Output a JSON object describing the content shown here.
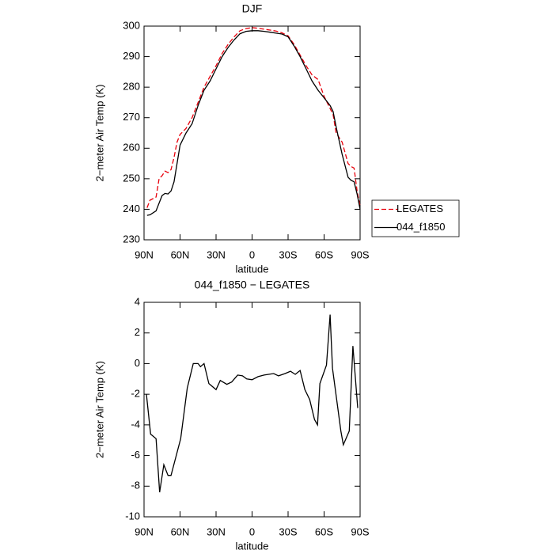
{
  "chart_data": [
    {
      "type": "line",
      "title": "DJF",
      "x_label": "latitude",
      "y_label": "2−meter Air Temp (K)",
      "x": [
        87.5,
        85,
        80,
        77.5,
        75,
        72.5,
        70,
        67.5,
        65,
        62.5,
        60,
        55,
        50,
        45,
        40,
        35,
        30,
        25,
        20,
        15,
        10,
        5,
        0,
        -5,
        -10,
        -15,
        -20,
        -25,
        -30,
        -35,
        -40,
        -45,
        -50,
        -55,
        -60,
        -65,
        -67.5,
        -70,
        -75,
        -80,
        -82.5,
        -85,
        -87.5,
        -90
      ],
      "series": [
        {
          "name": "LEGATES",
          "color": "#e8000b",
          "dash": "dashed",
          "values": [
            240.5,
            243,
            244,
            250,
            251,
            252.5,
            252,
            253,
            257,
            262,
            264.5,
            266.5,
            270,
            275,
            280,
            283.5,
            287,
            291,
            294,
            296.5,
            298.5,
            299.2,
            299.5,
            299.3,
            299,
            298.7,
            298.4,
            297.8,
            296.8,
            294,
            290.5,
            287,
            284,
            282.5,
            277,
            273,
            271,
            265,
            262,
            255,
            254,
            253.5,
            246,
            241
          ]
        },
        {
          "name": "044_f1850",
          "color": "#000000",
          "dash": "solid",
          "values": [
            238,
            238.2,
            239.5,
            242,
            244.5,
            245.2,
            245,
            246,
            249,
            255,
            261,
            265,
            268,
            274,
            279,
            282,
            286,
            290,
            293,
            295.5,
            297.5,
            298.3,
            298.5,
            298.5,
            298.3,
            298,
            297.7,
            297.4,
            296.5,
            293.5,
            290,
            286,
            282,
            279,
            276.5,
            274,
            272,
            267,
            258,
            250.5,
            249.5,
            249,
            245,
            240
          ]
        }
      ],
      "xlim": [
        90,
        -90
      ],
      "xticks": [
        {
          "value": 90,
          "label": "90N"
        },
        {
          "value": 60,
          "label": "60N"
        },
        {
          "value": 30,
          "label": "30N"
        },
        0,
        {
          "value": -30,
          "label": "30S"
        },
        {
          "value": -60,
          "label": "60S"
        },
        {
          "value": -90,
          "label": "90S"
        }
      ],
      "ylim": [
        230,
        300
      ],
      "yticks": [
        230,
        240,
        250,
        260,
        270,
        280,
        290,
        300
      ],
      "legend": "outside-right"
    },
    {
      "type": "line",
      "title": "044_f1850 − LEGATES",
      "x_label": "latitude",
      "y_label": "2−meter Air Temp (K)",
      "x": [
        88,
        84.5,
        80,
        77,
        73.5,
        70,
        67.5,
        63.5,
        59.5,
        54,
        49,
        45,
        43,
        40,
        36,
        30,
        26.5,
        21,
        17,
        12,
        8,
        4.5,
        0,
        -5,
        -10,
        -18,
        -22,
        -27.5,
        -32,
        -36,
        -40,
        -44,
        -48,
        -52,
        -54.5,
        -56.5,
        -62,
        -65,
        -67,
        -74,
        -76,
        -81,
        -84,
        -88
      ],
      "values": [
        -2,
        -4.6,
        -4.9,
        -8.4,
        -6.6,
        -7.3,
        -7.3,
        -6.1,
        -4.9,
        -1.6,
        0,
        0,
        -0.2,
        0,
        -1.3,
        -1.7,
        -1.1,
        -1.35,
        -1.2,
        -0.75,
        -0.8,
        -1,
        -1.05,
        -0.85,
        -0.75,
        -0.65,
        -0.8,
        -0.65,
        -0.5,
        -0.7,
        -0.45,
        -1.7,
        -2.35,
        -3.65,
        -4,
        -1.3,
        -0.1,
        3.2,
        -0.3,
        -4.4,
        -5.3,
        -4.4,
        1.15,
        -2.9
      ],
      "color": "#000000",
      "xlim": [
        90,
        -90
      ],
      "xticks": [
        {
          "value": 90,
          "label": "90N"
        },
        {
          "value": 60,
          "label": "60N"
        },
        {
          "value": 30,
          "label": "30N"
        },
        0,
        {
          "value": -30,
          "label": "30S"
        },
        {
          "value": -60,
          "label": "60S"
        },
        {
          "value": -90,
          "label": "90S"
        }
      ],
      "ylim": [
        -10,
        4
      ],
      "yticks": [
        -10,
        -8,
        -6,
        -4,
        -2,
        0,
        2,
        4
      ]
    }
  ]
}
